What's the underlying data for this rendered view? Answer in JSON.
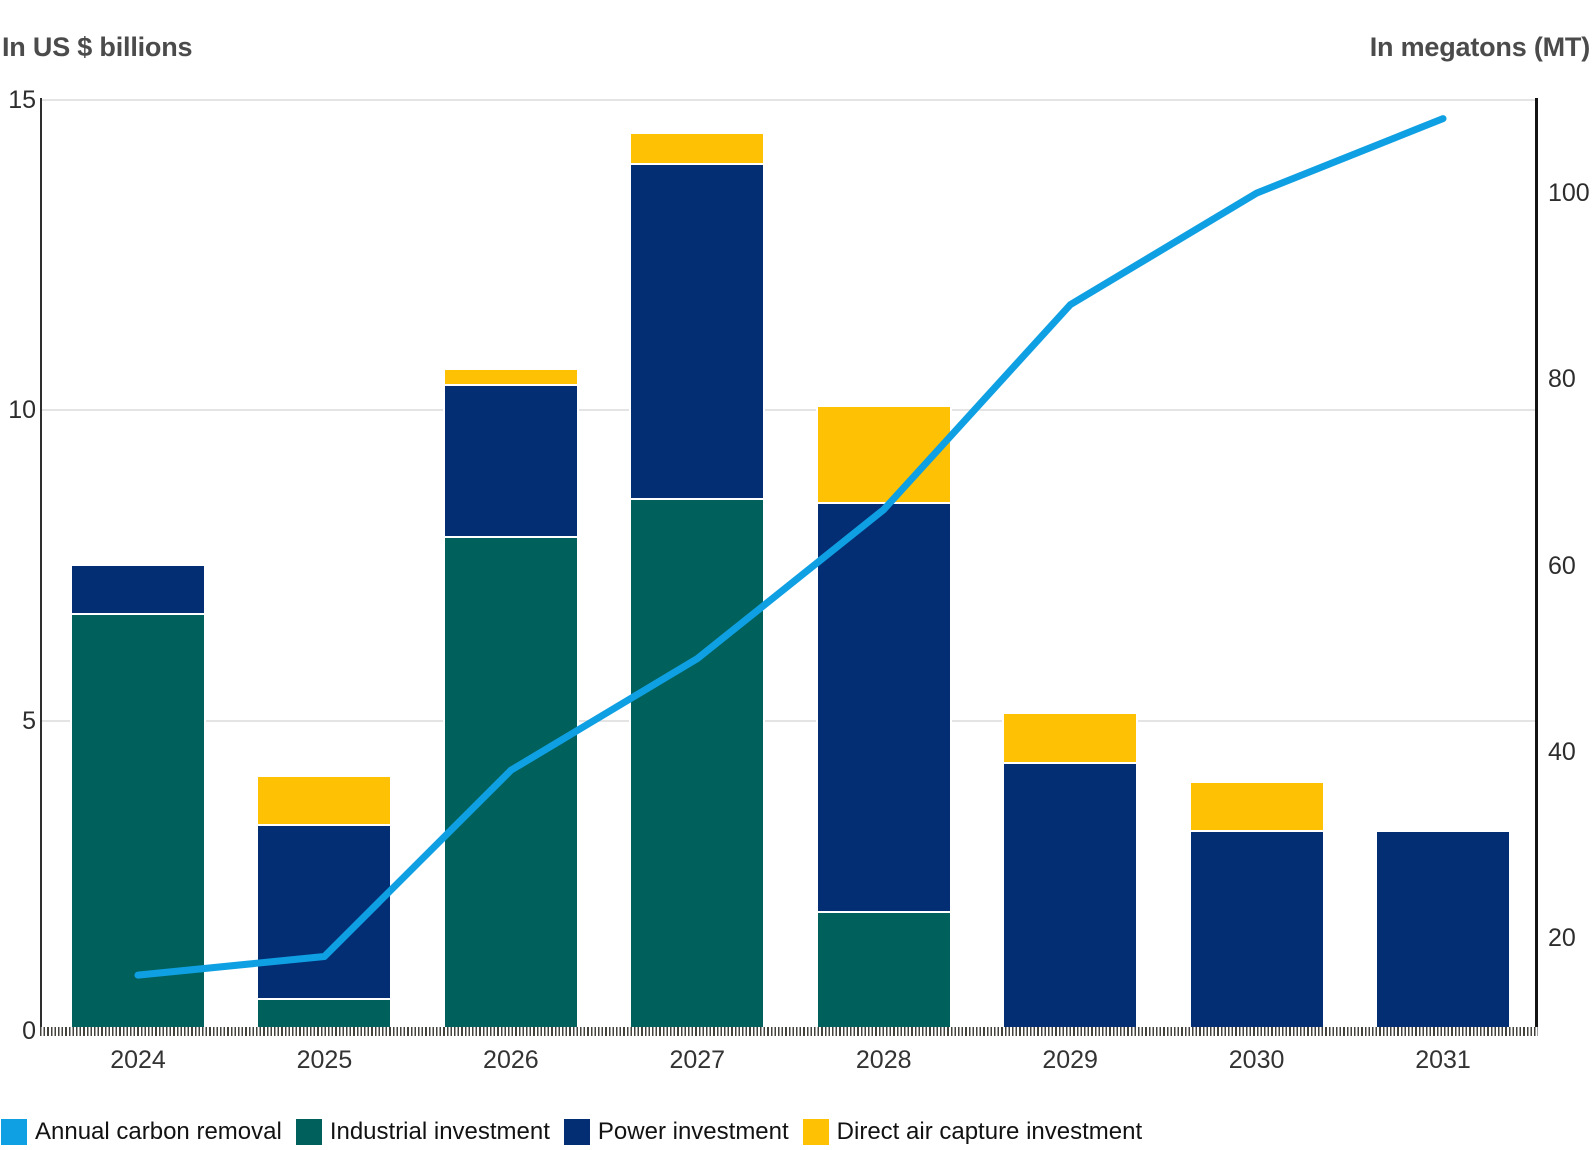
{
  "titles": {
    "left_axis": "In US $ billions",
    "right_axis": "In megatons (MT)"
  },
  "legend": {
    "items": [
      {
        "label": "Annual carbon removal",
        "color": "#0fa0e3",
        "type": "line"
      },
      {
        "label": "Industrial investment",
        "color": "#00615c",
        "type": "bar"
      },
      {
        "label": "Power investment",
        "color": "#042e74",
        "type": "bar"
      },
      {
        "label": "Direct air capture investment",
        "color": "#ffc103",
        "type": "bar"
      }
    ]
  },
  "chart_data": {
    "type": "combo-stacked-bar-line",
    "title": "",
    "categories": [
      "2024",
      "2025",
      "2026",
      "2027",
      "2028",
      "2029",
      "2030",
      "2031"
    ],
    "left_axis": {
      "label": "In US $ billions",
      "ticks": [
        0,
        5,
        10,
        15
      ],
      "range": [
        0,
        15
      ],
      "grid": true
    },
    "right_axis": {
      "label": "In megatons (MT)",
      "ticks": [
        20,
        40,
        60,
        80,
        100
      ],
      "range": [
        10,
        110
      ],
      "grid": false
    },
    "series": [
      {
        "name": "Industrial investment",
        "type": "bar",
        "stack": true,
        "color": "#00615c",
        "values": [
          6.7,
          0.5,
          7.95,
          8.55,
          1.9,
          0,
          0,
          0
        ]
      },
      {
        "name": "Power investment",
        "type": "bar",
        "stack": true,
        "color": "#042e74",
        "values": [
          0.8,
          2.8,
          2.45,
          5.4,
          6.6,
          4.3,
          3.2,
          3.2
        ]
      },
      {
        "name": "Direct air capture investment",
        "type": "bar",
        "stack": true,
        "color": "#ffc103",
        "values": [
          0,
          0.8,
          0.25,
          0.5,
          1.55,
          0.8,
          0.8,
          0
        ]
      },
      {
        "name": "Annual carbon removal",
        "type": "line",
        "axis": "right",
        "color": "#0fa0e3",
        "values": [
          16,
          18,
          38,
          50,
          66,
          88,
          100,
          108
        ]
      }
    ]
  }
}
